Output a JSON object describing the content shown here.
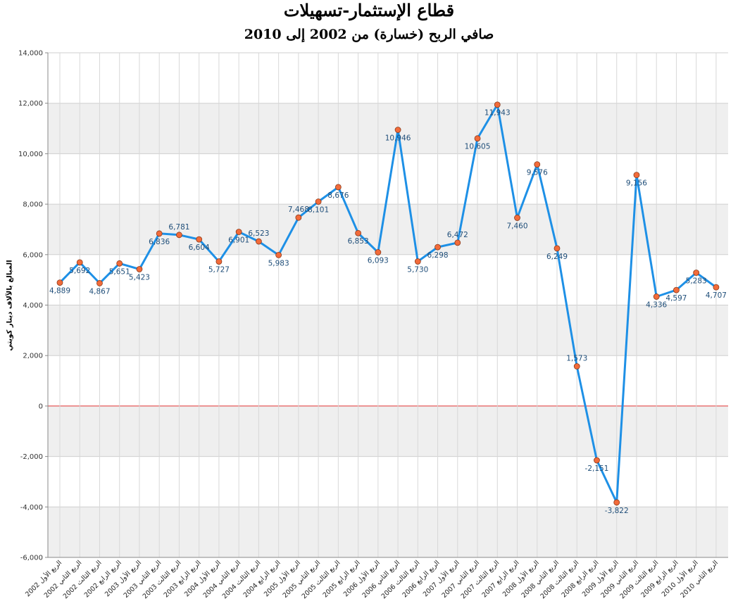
{
  "chart_data": {
    "type": "line",
    "title": "قطاع الإستثمار-تسهيلات",
    "subtitle": "صافي الربح (خسارة) من 2002 إلى 2010",
    "ylabel": "المبالغ بالآلاف دينار كويتي",
    "ylim": [
      -6000,
      14000
    ],
    "yticks": [
      "14,000",
      "12,000",
      "10,000",
      "8,000",
      "6,000",
      "4,000",
      "2,000",
      "0",
      "-2,000",
      "-4,000",
      "-6,000"
    ],
    "ytick_values": [
      14000,
      12000,
      10000,
      8000,
      6000,
      4000,
      2000,
      0,
      -2000,
      -4000,
      -6000
    ],
    "grid": true,
    "colors": {
      "line": "#1e90e6",
      "marker": "#f26b3a",
      "zero_line": "#e03030",
      "band": "#efefef"
    },
    "categories": [
      "الربع الأول 2002",
      "الربع الثاني 2002",
      "الربع الثالث 2002",
      "الربع الرابع 2002",
      "الربع الأول 2003",
      "الربع الثاني 2003",
      "الربع الثالث 2003",
      "الربع الرابع 2003",
      "الربع الأول 2004",
      "الربع الثاني 2004",
      "الربع الثالث 2004",
      "الربع الرابع 2004",
      "الربع الأول 2005",
      "الربع الثاني 2005",
      "الربع الثالث 2005",
      "الربع الرابع 2005",
      "الربع الأول 2006",
      "الربع الثاني 2006",
      "الربع الثالث 2006",
      "الربع الرابع 2006",
      "الربع الأول 2007",
      "الربع الثاني 2007",
      "الربع الثالث 2007",
      "الربع الرابع 2007",
      "الربع الأول 2008",
      "الربع الثاني 2008",
      "الربع الثالث 2008",
      "الربع الرابع 2008",
      "الربع الأول 2009",
      "الربع الثاني 2009",
      "الربع الثالث 2009",
      "الربع الرابع 2009",
      "الربع الأول 2010",
      "الربع الثاني 2010"
    ],
    "values": [
      4889,
      5692,
      4867,
      5651,
      5423,
      6836,
      6781,
      6604,
      5727,
      6901,
      6523,
      5983,
      7468,
      8101,
      8676,
      6853,
      6093,
      10946,
      5730,
      6298,
      6472,
      10605,
      11943,
      7460,
      9576,
      6249,
      1573,
      -2151,
      -3822,
      9156,
      4336,
      4597,
      5283,
      4707
    ],
    "labels": [
      "4,889",
      "5,692",
      "4,867",
      "5,651",
      "5,423",
      "6,836",
      "6,781",
      "6,604",
      "5,727",
      "6,901",
      "6,523",
      "5,983",
      "7,468",
      "8,101",
      "8,676",
      "6,853",
      "6,093",
      "10,946",
      "5,730",
      "6,298",
      "6,472",
      "10,605",
      "11,943",
      "7,460",
      "9,576",
      "6,249",
      "1,573",
      "-2,151",
      "-3,822",
      "9,156",
      "4,336",
      "4,597",
      "5,283",
      "4,707"
    ]
  }
}
